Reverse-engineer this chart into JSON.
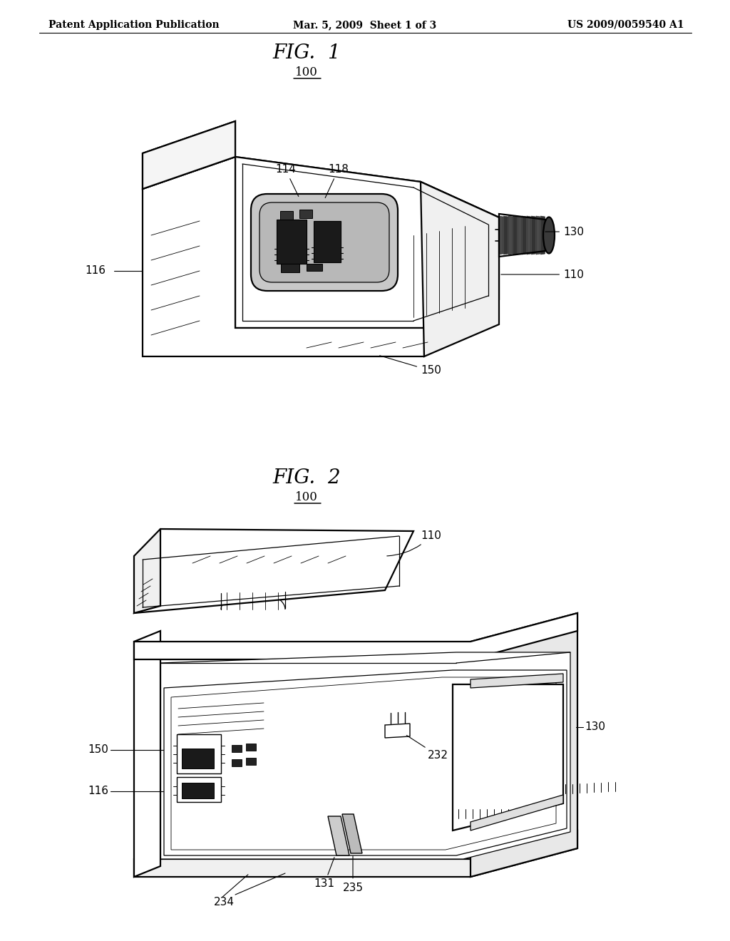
{
  "bg": "#ffffff",
  "lc": "#000000",
  "header_left": "Patent Application Publication",
  "header_center": "Mar. 5, 2009  Sheet 1 of 3",
  "header_right": "US 2009/0059540 A1",
  "fig1_title": "FIG.  1",
  "fig2_title": "FIG.  2",
  "ref100": "100",
  "annotation_fs": 11,
  "title_fs": 20,
  "ref100_fs": 12,
  "header_fs": 10
}
